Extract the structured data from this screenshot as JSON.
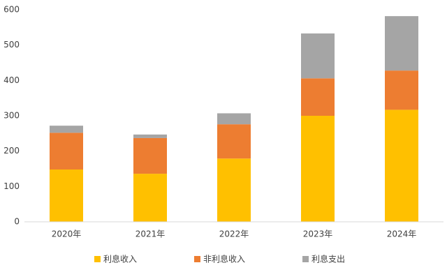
{
  "chart_data": {
    "type": "stacked_bar",
    "categories": [
      "2020年",
      "2021年",
      "2022年",
      "2023年",
      "2024年"
    ],
    "series": [
      {
        "name": "利息收入",
        "color": "#ffc000",
        "values": [
          148,
          136,
          179,
          300,
          317
        ]
      },
      {
        "name": "非利息收入",
        "color": "#ed7d31",
        "values": [
          104,
          101,
          97,
          106,
          111
        ]
      },
      {
        "name": "利息支出",
        "color": "#a5a5a5",
        "values": [
          20,
          10,
          31,
          127,
          154
        ]
      }
    ],
    "ylim": [
      0,
      600
    ],
    "yticks": [
      0,
      100,
      200,
      300,
      400,
      500,
      600
    ],
    "grid": false,
    "legend": "bottom"
  }
}
